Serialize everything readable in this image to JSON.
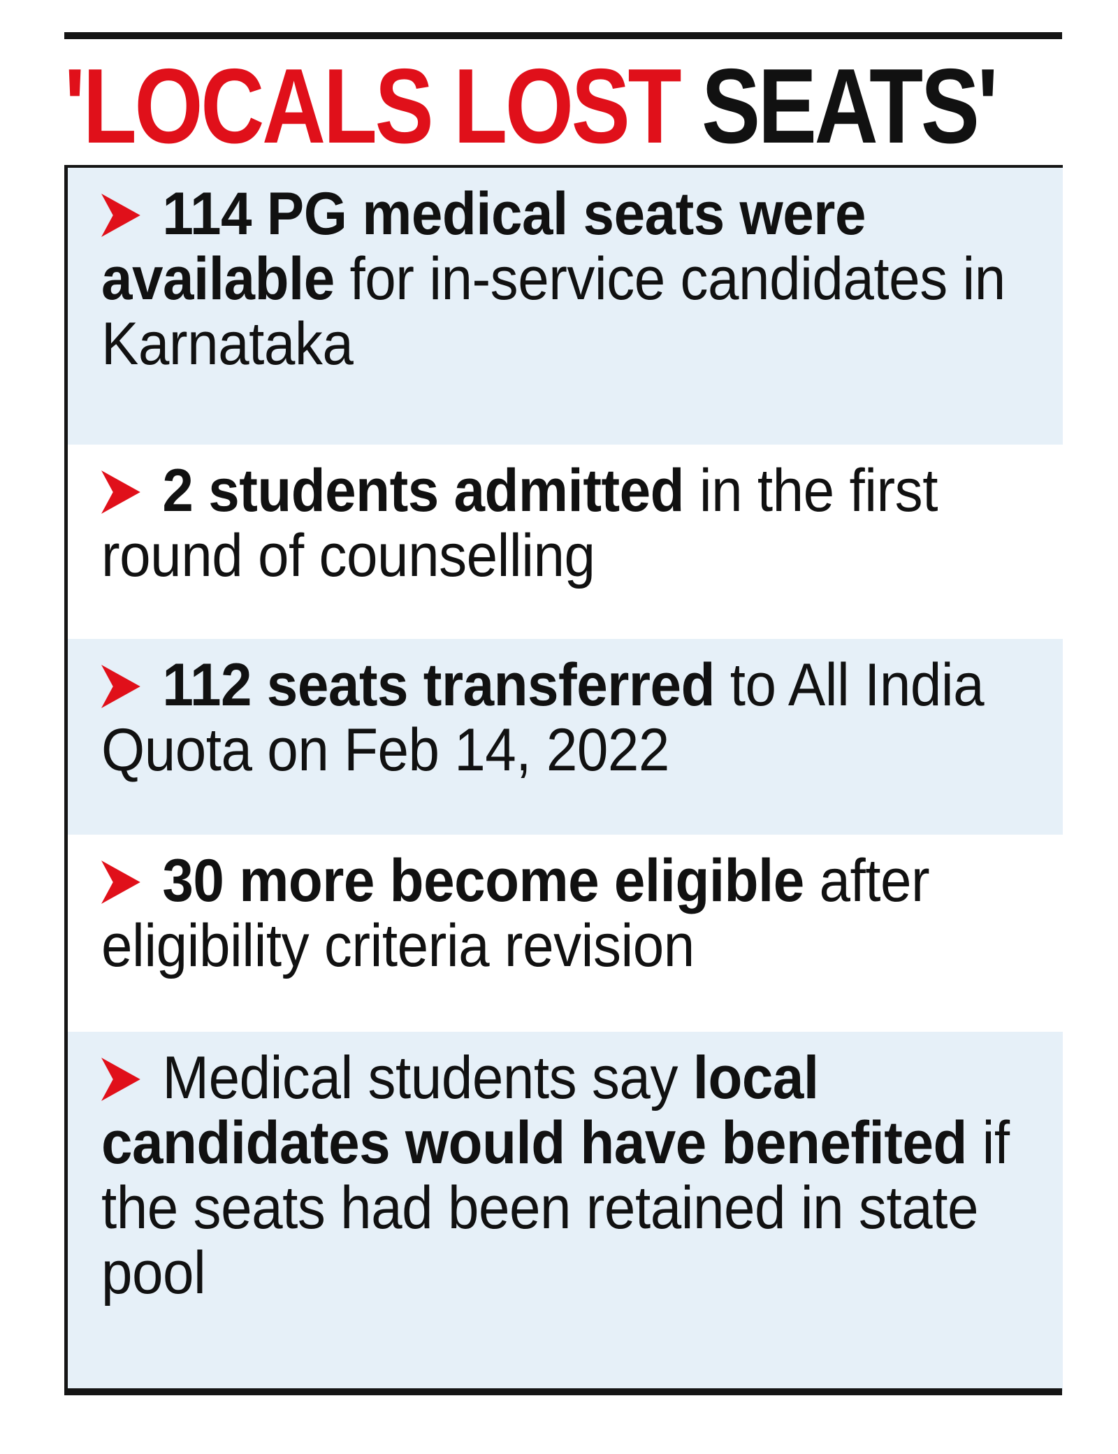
{
  "headline": {
    "red_part": "'LOCALS LOST",
    "black_part": " SEATS'"
  },
  "colors": {
    "accent_red": "#e0101a",
    "text": "#111111",
    "panel_shade": "#e6f0f8"
  },
  "bullet_icon": "red-chevron-arrow-icon",
  "items": [
    {
      "bold": "114 PG medical seats were available",
      "rest": " for in-service candidates in Karnataka"
    },
    {
      "bold": "2 students admitted",
      "rest": " in the first round of counselling"
    },
    {
      "bold": "112 seats transferred",
      "rest": " to All India Quota on Feb 14, 2022"
    },
    {
      "bold": "30 more become eligible",
      "rest": " after eligibility criteria revision"
    },
    {
      "pre": "Medical students say ",
      "bold": "local candidates would have benefited",
      "rest": " if the seats had been retained in state pool"
    }
  ]
}
